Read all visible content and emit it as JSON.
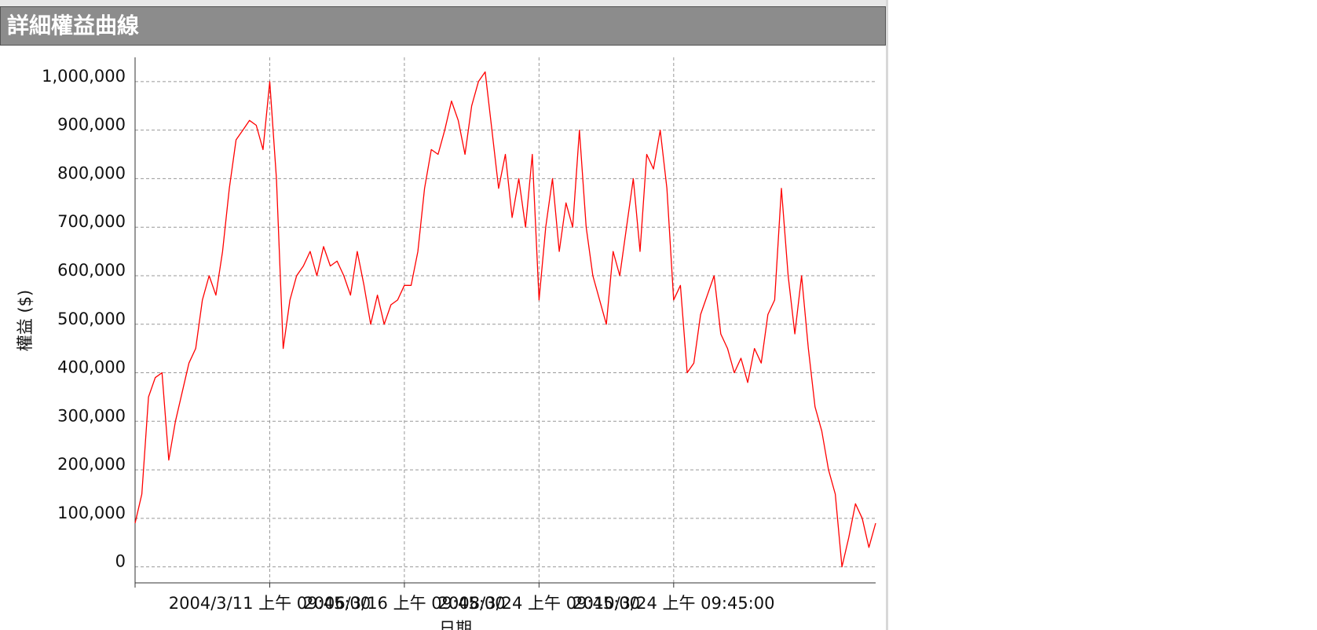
{
  "chart_data": {
    "type": "line",
    "title": "詳細權益曲線",
    "ylabel": "權益 ($)",
    "xlabel": "日期",
    "color": "#ff0000",
    "grid": true,
    "xlim": [
      0,
      110
    ],
    "xticks": [
      {
        "value": 20,
        "label": "2004/3/11 上午 09:45:00"
      },
      {
        "value": 40,
        "label": "2006/3/16 上午 09:45:00"
      },
      {
        "value": 60,
        "label": "2008/3/24 上午 09:45:00"
      },
      {
        "value": 80,
        "label": "2010/3/24 上午 09:45:00"
      }
    ],
    "ylim": [
      -33000,
      1050000
    ],
    "yticks": [
      0,
      {
        "value": 100000,
        "label": "100,000"
      },
      {
        "value": 200000,
        "label": "200,000"
      },
      {
        "value": 300000,
        "label": "300,000"
      },
      {
        "value": 400000,
        "label": "400,000"
      },
      {
        "value": 500000,
        "label": "500,000"
      },
      {
        "value": 600000,
        "label": "600,000"
      },
      {
        "value": 700000,
        "label": "700,000"
      },
      {
        "value": 800000,
        "label": "800,000"
      },
      {
        "value": 900000,
        "label": "900,000"
      },
      {
        "value": 1000000,
        "label": "1,000,000"
      }
    ],
    "values": [
      90000,
      150000,
      350000,
      390000,
      400000,
      220000,
      300000,
      360000,
      420000,
      450000,
      550000,
      600000,
      560000,
      650000,
      780000,
      880000,
      900000,
      920000,
      910000,
      860000,
      1000000,
      800000,
      450000,
      550000,
      600000,
      620000,
      650000,
      600000,
      660000,
      620000,
      630000,
      600000,
      560000,
      650000,
      580000,
      500000,
      560000,
      500000,
      540000,
      550000,
      580000,
      580000,
      650000,
      780000,
      860000,
      850000,
      900000,
      960000,
      920000,
      850000,
      950000,
      1000000,
      1020000,
      900000,
      780000,
      850000,
      720000,
      800000,
      700000,
      850000,
      550000,
      700000,
      800000,
      650000,
      750000,
      700000,
      900000,
      700000,
      600000,
      550000,
      500000,
      650000,
      600000,
      700000,
      800000,
      650000,
      850000,
      820000,
      900000,
      780000,
      550000,
      580000,
      400000,
      420000,
      520000,
      560000,
      600000,
      480000,
      450000,
      400000,
      430000,
      380000,
      450000,
      420000,
      520000,
      550000,
      780000,
      600000,
      480000,
      600000,
      450000,
      330000,
      280000,
      200000,
      150000,
      0,
      60000,
      130000,
      100000,
      40000,
      90000
    ]
  }
}
